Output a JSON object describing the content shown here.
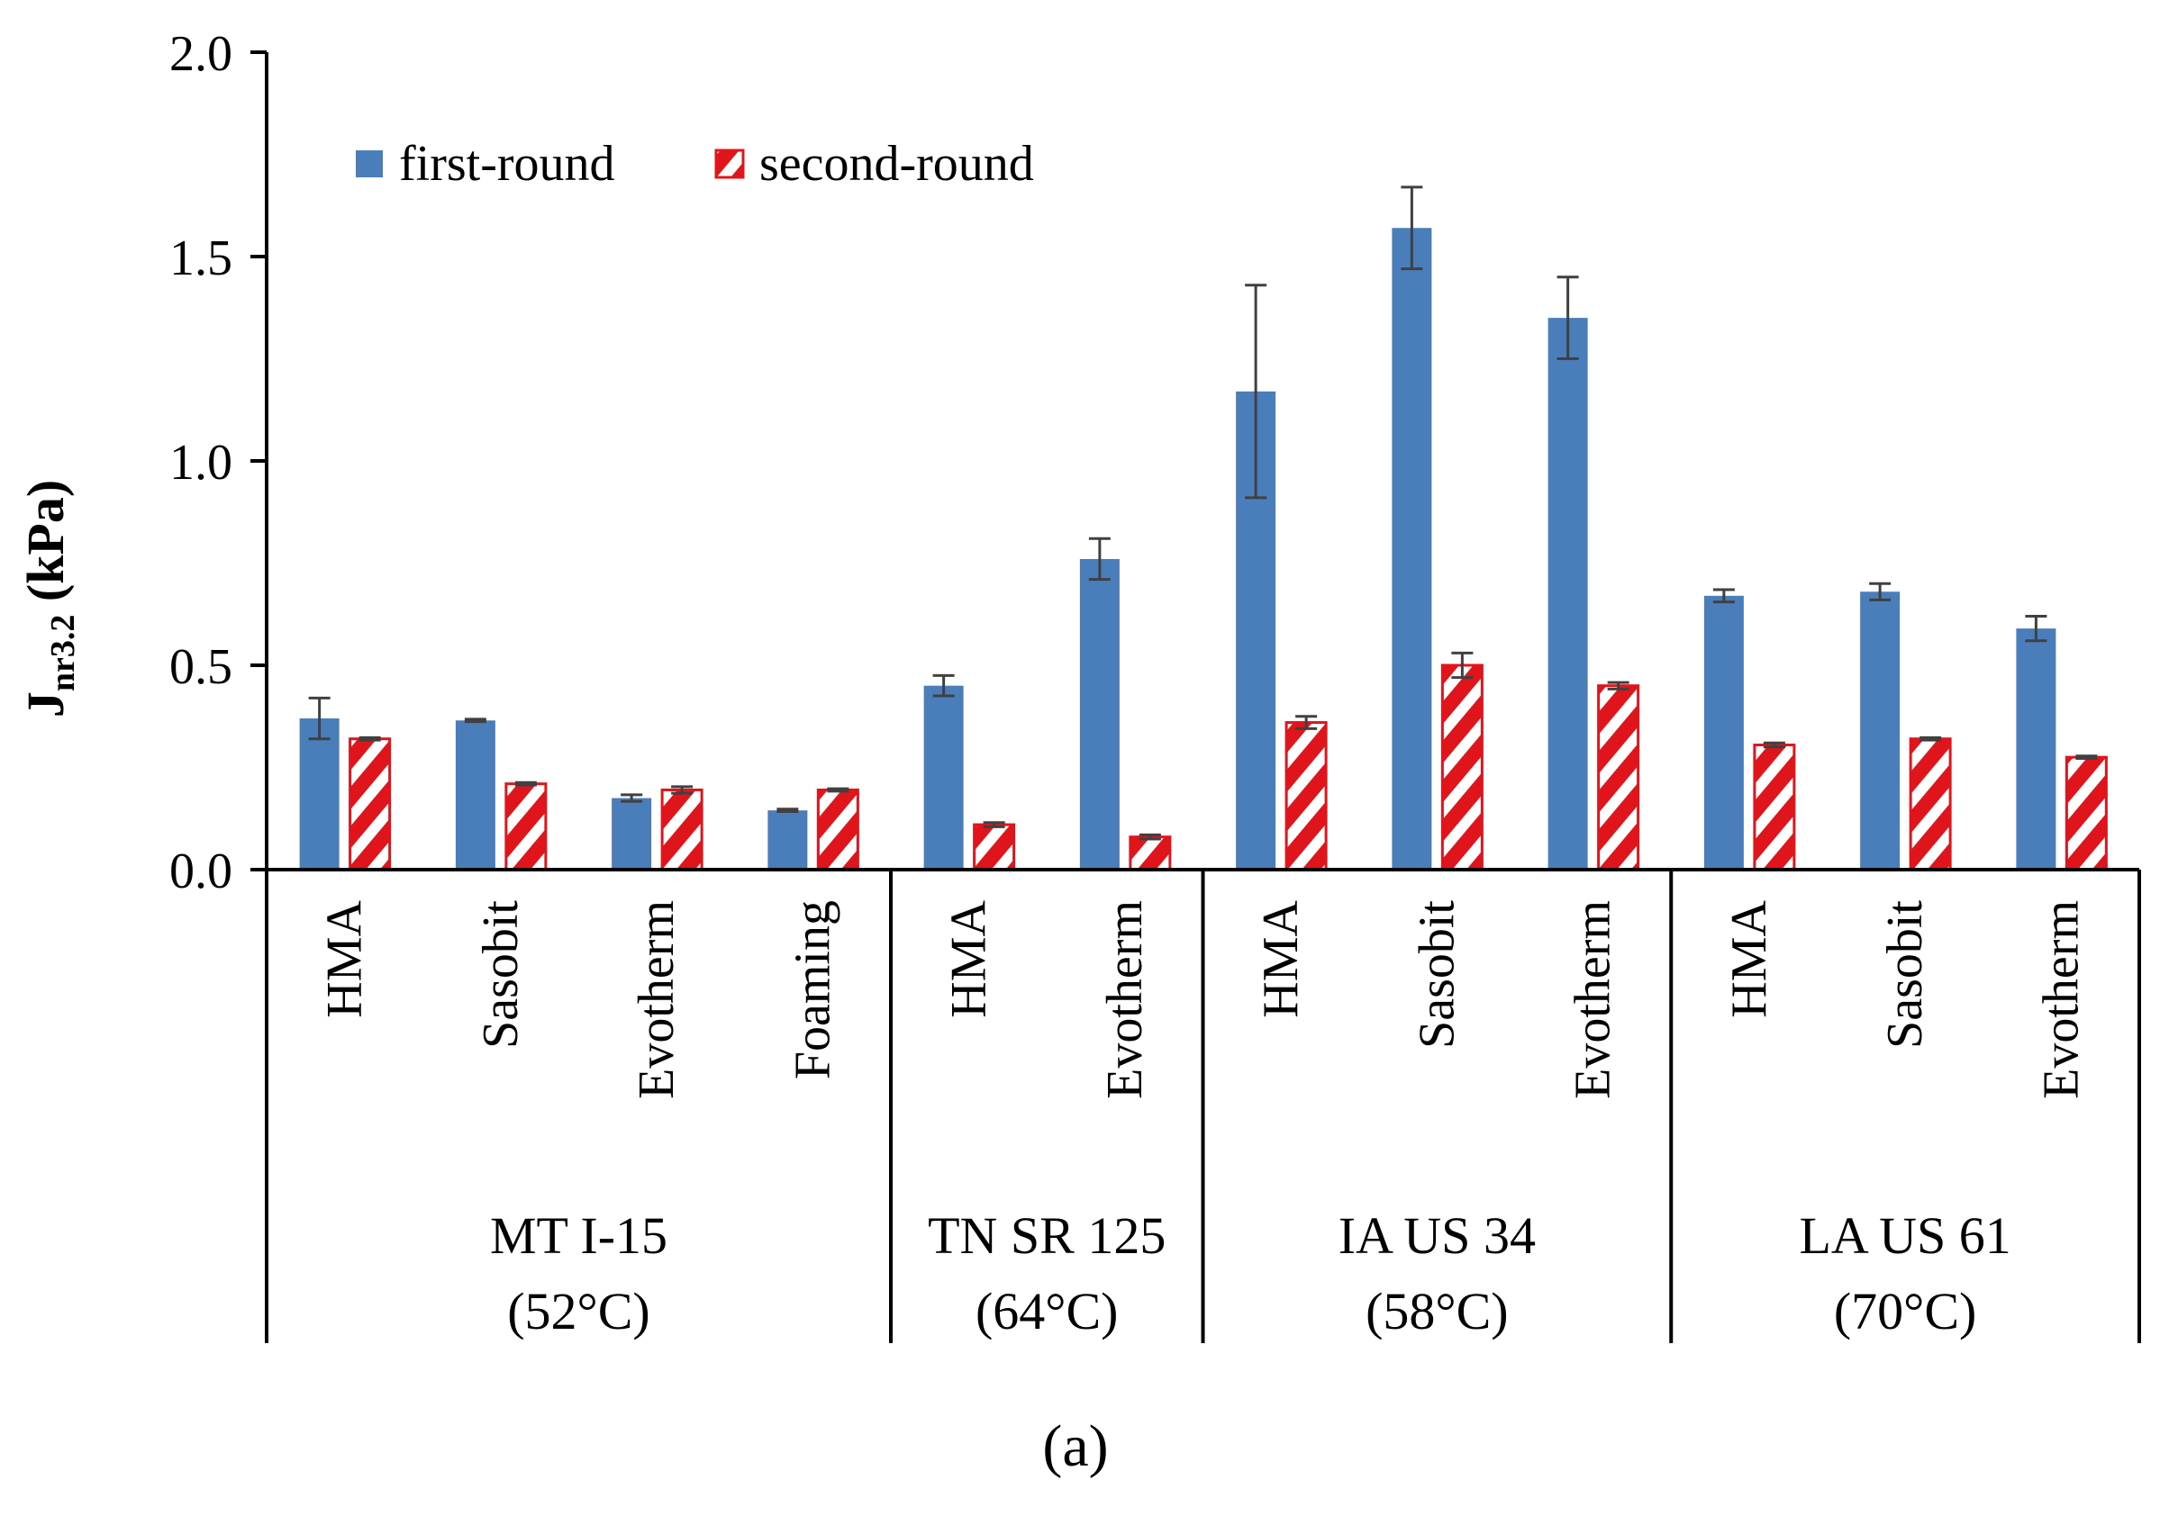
{
  "chart_data": {
    "type": "bar",
    "title": "",
    "ylabel_main": "J",
    "ylabel_sub": "nr3.2",
    "ylabel_unit": " (kPa)",
    "ylim": [
      0,
      2.0
    ],
    "yticks": [
      "0.0",
      "0.5",
      "1.0",
      "1.5",
      "2.0"
    ],
    "ytick_values": [
      0,
      0.5,
      1.0,
      1.5,
      2.0
    ],
    "grid": false,
    "legend_position": "top-left",
    "categories": [
      "HMA",
      "Sasobit",
      "Evotherm",
      "Foaming",
      "HMA",
      "Evotherm",
      "HMA",
      "Sasobit",
      "Evotherm",
      "HMA",
      "Sasobit",
      "Evotherm"
    ],
    "groups": [
      {
        "name": "MT I-15",
        "temp": "(52°C)",
        "count": 4
      },
      {
        "name": "TN SR 125",
        "temp": "(64°C)",
        "count": 2
      },
      {
        "name": "IA US 34",
        "temp": "(58°C)",
        "count": 3
      },
      {
        "name": "LA US 61",
        "temp": "(70°C)",
        "count": 3
      }
    ],
    "series": [
      {
        "name": "first-round",
        "color": "#4a7ebb",
        "values": [
          0.37,
          0.365,
          0.175,
          0.145,
          0.45,
          0.76,
          1.17,
          1.57,
          1.35,
          0.67,
          0.68,
          0.59
        ],
        "errors": [
          0.05,
          0.003,
          0.008,
          0.003,
          0.025,
          0.05,
          0.26,
          0.1,
          0.1,
          0.015,
          0.02,
          0.03
        ]
      },
      {
        "name": "second-round",
        "color": "#e0141b",
        "values": [
          0.32,
          0.21,
          0.195,
          0.195,
          0.11,
          0.08,
          0.36,
          0.5,
          0.45,
          0.305,
          0.32,
          0.275
        ],
        "errors": [
          0.003,
          0.003,
          0.008,
          0.003,
          0.005,
          0.005,
          0.015,
          0.03,
          0.008,
          0.005,
          0.003,
          0.003
        ]
      }
    ]
  },
  "caption": "(a)",
  "colors": {
    "axis": "#000000",
    "error_bar": "#404040",
    "hatch": "#ffffff"
  }
}
